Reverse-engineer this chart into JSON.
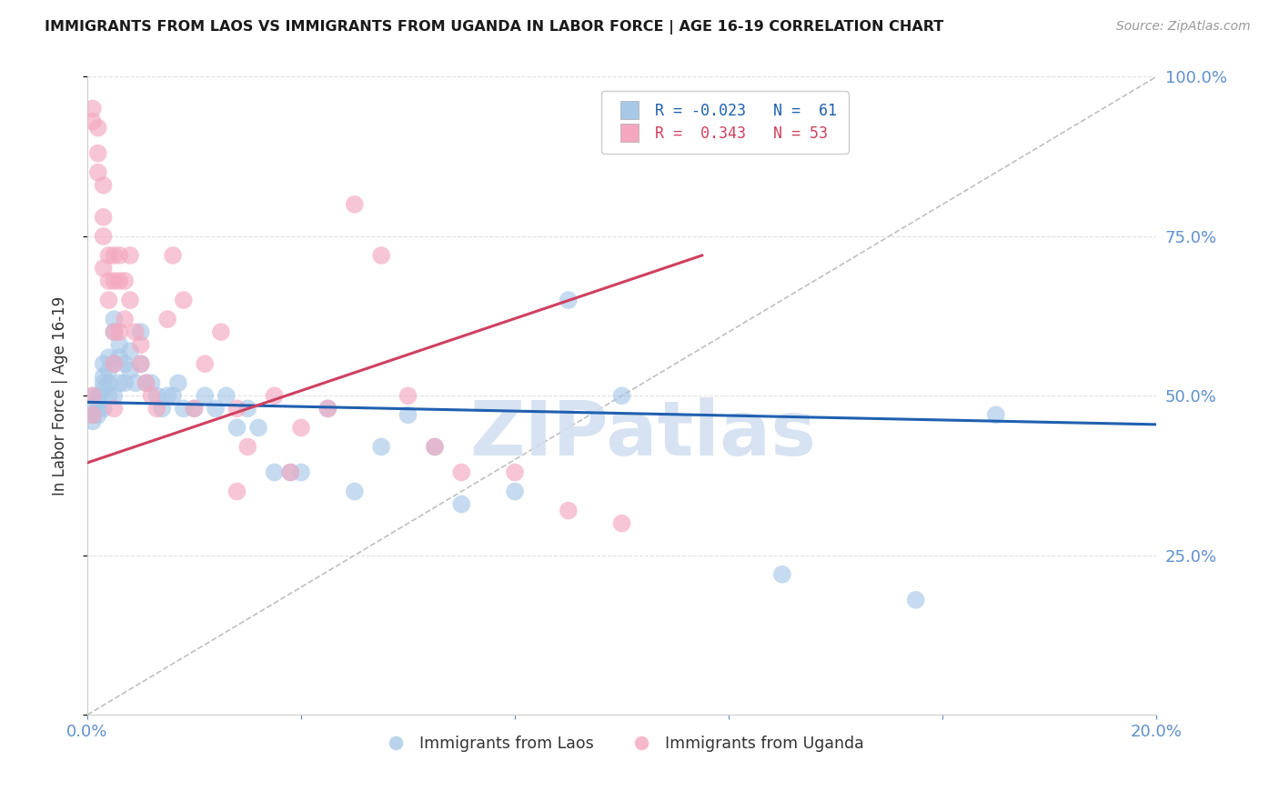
{
  "title": "IMMIGRANTS FROM LAOS VS IMMIGRANTS FROM UGANDA IN LABOR FORCE | AGE 16-19 CORRELATION CHART",
  "source": "Source: ZipAtlas.com",
  "ylabel": "In Labor Force | Age 16-19",
  "xlim": [
    0.0,
    0.2
  ],
  "ylim": [
    0.0,
    1.0
  ],
  "laos_color": "#a8c8e8",
  "uganda_color": "#f4a8c0",
  "trend_laos_color": "#2060b0",
  "trend_uganda_color": "#d04060",
  "ref_line_color": "#c0c0c0",
  "grid_color": "#e0e0e0",
  "right_axis_color": "#6090d0",
  "bottom_axis_color": "#6090d0",
  "watermark_color": "#d0dff0",
  "laos_x": [
    0.001,
    0.001,
    0.001,
    0.001,
    0.002,
    0.002,
    0.002,
    0.002,
    0.003,
    0.003,
    0.003,
    0.003,
    0.003,
    0.004,
    0.004,
    0.004,
    0.004,
    0.005,
    0.005,
    0.005,
    0.005,
    0.006,
    0.006,
    0.006,
    0.007,
    0.007,
    0.008,
    0.008,
    0.009,
    0.01,
    0.01,
    0.011,
    0.012,
    0.013,
    0.014,
    0.015,
    0.016,
    0.017,
    0.018,
    0.02,
    0.022,
    0.024,
    0.026,
    0.028,
    0.03,
    0.032,
    0.035,
    0.038,
    0.04,
    0.045,
    0.05,
    0.055,
    0.06,
    0.065,
    0.07,
    0.08,
    0.09,
    0.1,
    0.13,
    0.155,
    0.17
  ],
  "laos_y": [
    0.5,
    0.48,
    0.47,
    0.46,
    0.5,
    0.49,
    0.48,
    0.47,
    0.55,
    0.53,
    0.52,
    0.51,
    0.48,
    0.56,
    0.54,
    0.52,
    0.5,
    0.62,
    0.6,
    0.55,
    0.5,
    0.58,
    0.56,
    0.52,
    0.55,
    0.52,
    0.57,
    0.54,
    0.52,
    0.6,
    0.55,
    0.52,
    0.52,
    0.5,
    0.48,
    0.5,
    0.5,
    0.52,
    0.48,
    0.48,
    0.5,
    0.48,
    0.5,
    0.45,
    0.48,
    0.45,
    0.38,
    0.38,
    0.38,
    0.48,
    0.35,
    0.42,
    0.47,
    0.42,
    0.33,
    0.35,
    0.65,
    0.5,
    0.22,
    0.18,
    0.47
  ],
  "uganda_x": [
    0.001,
    0.001,
    0.001,
    0.001,
    0.002,
    0.002,
    0.002,
    0.003,
    0.003,
    0.003,
    0.003,
    0.004,
    0.004,
    0.004,
    0.005,
    0.005,
    0.005,
    0.005,
    0.006,
    0.006,
    0.006,
    0.007,
    0.007,
    0.008,
    0.008,
    0.009,
    0.01,
    0.01,
    0.011,
    0.012,
    0.013,
    0.015,
    0.016,
    0.018,
    0.02,
    0.022,
    0.025,
    0.028,
    0.03,
    0.035,
    0.04,
    0.045,
    0.05,
    0.055,
    0.06,
    0.065,
    0.07,
    0.08,
    0.09,
    0.1,
    0.038,
    0.028,
    0.005
  ],
  "uganda_y": [
    0.95,
    0.93,
    0.5,
    0.47,
    0.92,
    0.88,
    0.85,
    0.83,
    0.78,
    0.75,
    0.7,
    0.72,
    0.68,
    0.65,
    0.72,
    0.68,
    0.6,
    0.55,
    0.72,
    0.68,
    0.6,
    0.68,
    0.62,
    0.72,
    0.65,
    0.6,
    0.58,
    0.55,
    0.52,
    0.5,
    0.48,
    0.62,
    0.72,
    0.65,
    0.48,
    0.55,
    0.6,
    0.48,
    0.42,
    0.5,
    0.45,
    0.48,
    0.8,
    0.72,
    0.5,
    0.42,
    0.38,
    0.38,
    0.32,
    0.3,
    0.38,
    0.35,
    0.48
  ],
  "laos_trend_x": [
    0.0,
    0.2
  ],
  "laos_trend_y": [
    0.49,
    0.455
  ],
  "uganda_trend_x": [
    0.0,
    0.115
  ],
  "uganda_trend_y": [
    0.395,
    0.72
  ]
}
